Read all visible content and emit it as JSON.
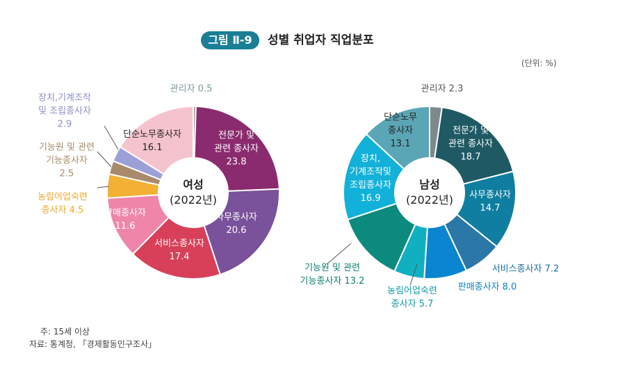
{
  "figure": {
    "badge": "그림 Ⅱ-9",
    "title": "성별 취업자 직업분포",
    "unit": "(단위: %)"
  },
  "notes": {
    "note": "주: 15세 이상",
    "source": "자료: 통계청, 「경제활동인구조사」"
  },
  "chart_data": [
    {
      "type": "pie",
      "donut": true,
      "center_label": "여성",
      "center_sub": "(2022년)",
      "categories": [
        "관리자",
        "전문가 및 관련 종사자",
        "사무종사자",
        "서비스종사자",
        "판매종사자",
        "농림어업숙련 종사자",
        "기능원 및 관련 기능종사자",
        "장치,기계조작 및 조립종사자",
        "단순노무종사자"
      ],
      "values": [
        0.5,
        23.8,
        20.6,
        17.4,
        11.6,
        4.5,
        2.5,
        2.9,
        16.1
      ],
      "colors": [
        "#9a9a9a",
        "#8b2b6f",
        "#7a519b",
        "#d8405a",
        "#ef86a9",
        "#f2b134",
        "#a98a6b",
        "#9ba1d6",
        "#f5c3cd"
      ],
      "labels": [
        "관리자 0.5",
        "전문가 및\n관련 종사자\n23.8",
        "사무종사자\n20.6",
        "서비스종사자\n17.4",
        "판매종사자\n11.6",
        "농림어업숙련\n종사자 4.5",
        "기능원 및 관련\n기능종사자\n2.5",
        "장치,기계조작\n및 조립종사자\n2.9",
        "단순노무종사자\n16.1"
      ]
    },
    {
      "type": "pie",
      "donut": true,
      "center_label": "남성",
      "center_sub": "(2022년)",
      "categories": [
        "관리자",
        "전문가 및 관련 종사자",
        "사무종사자",
        "서비스종사자",
        "판매종사자",
        "농림어업숙련 종사자",
        "기능원 및 관련 기능종사자",
        "장치,기계조작및 조립종사자",
        "단순노무 종사자"
      ],
      "values": [
        2.3,
        18.7,
        14.7,
        7.2,
        8.0,
        5.7,
        13.2,
        16.9,
        13.1
      ],
      "colors": [
        "#7e898c",
        "#1f5a64",
        "#0f7ea0",
        "#2a77a8",
        "#0a86d0",
        "#11b0c0",
        "#0d8a7e",
        "#12b1d9",
        "#5ba6b6"
      ],
      "labels": [
        "관리자 2.3",
        "전문가 및\n관련 종사자\n18.7",
        "사무종사자\n14.7",
        "서비스종사자 7.2",
        "판매종사자 8.0",
        "농림어업숙련\n종사자 5.7",
        "기능원 및 관련\n기능종사자 13.2",
        "장치,\n기계조작및\n조립종사자\n16.9",
        "단순노무\n종사자\n13.1"
      ]
    }
  ]
}
